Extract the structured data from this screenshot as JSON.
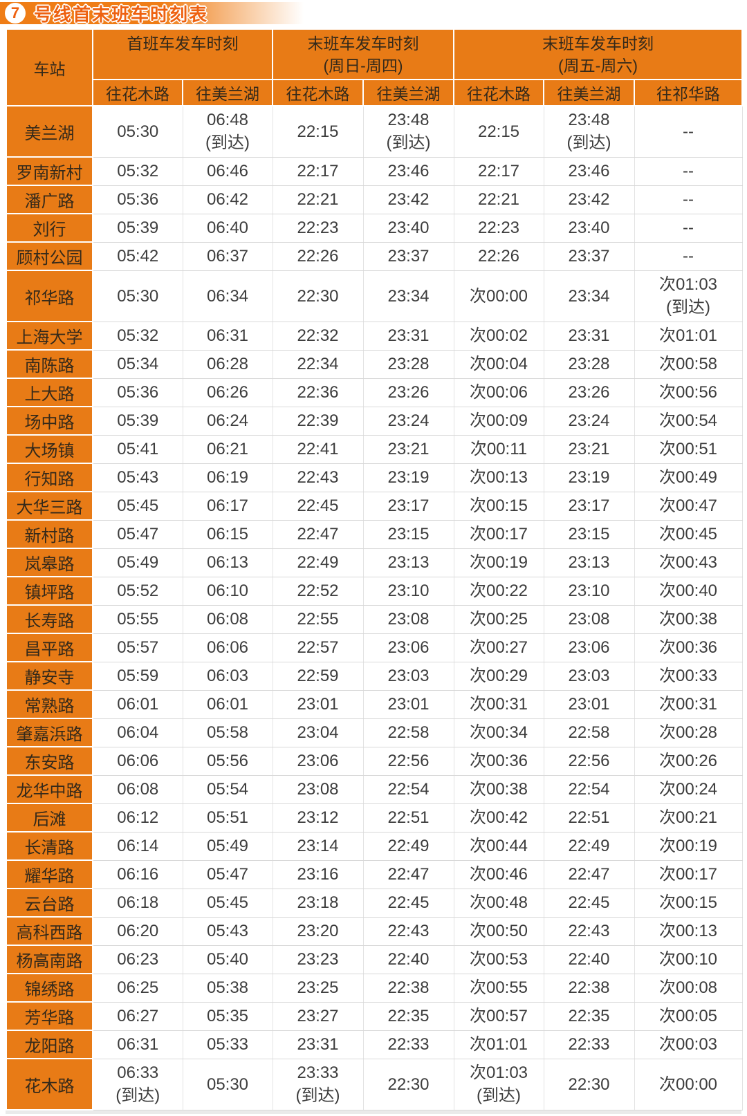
{
  "header": {
    "line_badge": "7",
    "title": "号线首末班车时刻表"
  },
  "colors": {
    "orange": "#e87b16",
    "bar_orange": "#ef7d16",
    "title_orange": "#ee6110",
    "header_text": "#34291a",
    "cell_text": "#3d3d3d"
  },
  "table": {
    "station_header": "车站",
    "groups": [
      {
        "label": "首班车发车时刻",
        "sub": ""
      },
      {
        "label": "末班车发车时刻",
        "sub": "(周日-周四)"
      },
      {
        "label": "末班车发车时刻",
        "sub": "(周五-周六)"
      }
    ],
    "direction_headers": [
      "往花木路",
      "往美兰湖",
      "往花木路",
      "往美兰湖",
      "往花木路",
      "往美兰湖",
      "往祁华路"
    ],
    "rows": [
      {
        "station": "美兰湖",
        "tall": true,
        "cells": [
          "05:30",
          "06:48\n(到达)",
          "22:15",
          "23:48\n(到达)",
          "22:15",
          "23:48\n(到达)",
          "--"
        ]
      },
      {
        "station": "罗南新村",
        "tall": false,
        "cells": [
          "05:32",
          "06:46",
          "22:17",
          "23:46",
          "22:17",
          "23:46",
          "--"
        ]
      },
      {
        "station": "潘广路",
        "tall": false,
        "cells": [
          "05:36",
          "06:42",
          "22:21",
          "23:42",
          "22:21",
          "23:42",
          "--"
        ]
      },
      {
        "station": "刘行",
        "tall": false,
        "cells": [
          "05:39",
          "06:40",
          "22:23",
          "23:40",
          "22:23",
          "23:40",
          "--"
        ]
      },
      {
        "station": "顾村公园",
        "tall": false,
        "cells": [
          "05:42",
          "06:37",
          "22:26",
          "23:37",
          "22:26",
          "23:37",
          "--"
        ]
      },
      {
        "station": "祁华路",
        "tall": true,
        "cells": [
          "05:30",
          "06:34",
          "22:30",
          "23:34",
          "次00:00",
          "23:34",
          "次01:03\n(到达)"
        ]
      },
      {
        "station": "上海大学",
        "tall": false,
        "cells": [
          "05:32",
          "06:31",
          "22:32",
          "23:31",
          "次00:02",
          "23:31",
          "次01:01"
        ]
      },
      {
        "station": "南陈路",
        "tall": false,
        "cells": [
          "05:34",
          "06:28",
          "22:34",
          "23:28",
          "次00:04",
          "23:28",
          "次00:58"
        ]
      },
      {
        "station": "上大路",
        "tall": false,
        "cells": [
          "05:36",
          "06:26",
          "22:36",
          "23:26",
          "次00:06",
          "23:26",
          "次00:56"
        ]
      },
      {
        "station": "场中路",
        "tall": false,
        "cells": [
          "05:39",
          "06:24",
          "22:39",
          "23:24",
          "次00:09",
          "23:24",
          "次00:54"
        ]
      },
      {
        "station": "大场镇",
        "tall": false,
        "cells": [
          "05:41",
          "06:21",
          "22:41",
          "23:21",
          "次00:11",
          "23:21",
          "次00:51"
        ]
      },
      {
        "station": "行知路",
        "tall": false,
        "cells": [
          "05:43",
          "06:19",
          "22:43",
          "23:19",
          "次00:13",
          "23:19",
          "次00:49"
        ]
      },
      {
        "station": "大华三路",
        "tall": false,
        "cells": [
          "05:45",
          "06:17",
          "22:45",
          "23:17",
          "次00:15",
          "23:17",
          "次00:47"
        ]
      },
      {
        "station": "新村路",
        "tall": false,
        "cells": [
          "05:47",
          "06:15",
          "22:47",
          "23:15",
          "次00:17",
          "23:15",
          "次00:45"
        ]
      },
      {
        "station": "岚皋路",
        "tall": false,
        "cells": [
          "05:49",
          "06:13",
          "22:49",
          "23:13",
          "次00:19",
          "23:13",
          "次00:43"
        ]
      },
      {
        "station": "镇坪路",
        "tall": false,
        "cells": [
          "05:52",
          "06:10",
          "22:52",
          "23:10",
          "次00:22",
          "23:10",
          "次00:40"
        ]
      },
      {
        "station": "长寿路",
        "tall": false,
        "cells": [
          "05:55",
          "06:08",
          "22:55",
          "23:08",
          "次00:25",
          "23:08",
          "次00:38"
        ]
      },
      {
        "station": "昌平路",
        "tall": false,
        "cells": [
          "05:57",
          "06:06",
          "22:57",
          "23:06",
          "次00:27",
          "23:06",
          "次00:36"
        ]
      },
      {
        "station": "静安寺",
        "tall": false,
        "cells": [
          "05:59",
          "06:03",
          "22:59",
          "23:03",
          "次00:29",
          "23:03",
          "次00:33"
        ]
      },
      {
        "station": "常熟路",
        "tall": false,
        "cells": [
          "06:01",
          "06:01",
          "23:01",
          "23:01",
          "次00:31",
          "23:01",
          "次00:31"
        ]
      },
      {
        "station": "肇嘉浜路",
        "tall": false,
        "cells": [
          "06:04",
          "05:58",
          "23:04",
          "22:58",
          "次00:34",
          "22:58",
          "次00:28"
        ]
      },
      {
        "station": "东安路",
        "tall": false,
        "cells": [
          "06:06",
          "05:56",
          "23:06",
          "22:56",
          "次00:36",
          "22:56",
          "次00:26"
        ]
      },
      {
        "station": "龙华中路",
        "tall": false,
        "cells": [
          "06:08",
          "05:54",
          "23:08",
          "22:54",
          "次00:38",
          "22:54",
          "次00:24"
        ]
      },
      {
        "station": "后滩",
        "tall": false,
        "cells": [
          "06:12",
          "05:51",
          "23:12",
          "22:51",
          "次00:42",
          "22:51",
          "次00:21"
        ]
      },
      {
        "station": "长清路",
        "tall": false,
        "cells": [
          "06:14",
          "05:49",
          "23:14",
          "22:49",
          "次00:44",
          "22:49",
          "次00:19"
        ]
      },
      {
        "station": "耀华路",
        "tall": false,
        "cells": [
          "06:16",
          "05:47",
          "23:16",
          "22:47",
          "次00:46",
          "22:47",
          "次00:17"
        ]
      },
      {
        "station": "云台路",
        "tall": false,
        "cells": [
          "06:18",
          "05:45",
          "23:18",
          "22:45",
          "次00:48",
          "22:45",
          "次00:15"
        ]
      },
      {
        "station": "高科西路",
        "tall": false,
        "cells": [
          "06:20",
          "05:43",
          "23:20",
          "22:43",
          "次00:50",
          "22:43",
          "次00:13"
        ]
      },
      {
        "station": "杨高南路",
        "tall": false,
        "cells": [
          "06:23",
          "05:40",
          "23:23",
          "22:40",
          "次00:53",
          "22:40",
          "次00:10"
        ]
      },
      {
        "station": "锦绣路",
        "tall": false,
        "cells": [
          "06:25",
          "05:38",
          "23:25",
          "22:38",
          "次00:55",
          "22:38",
          "次00:08"
        ]
      },
      {
        "station": "芳华路",
        "tall": false,
        "cells": [
          "06:27",
          "05:35",
          "23:27",
          "22:35",
          "次00:57",
          "22:35",
          "次00:05"
        ]
      },
      {
        "station": "龙阳路",
        "tall": false,
        "cells": [
          "06:31",
          "05:33",
          "23:31",
          "22:33",
          "次01:01",
          "22:33",
          "次00:03"
        ]
      },
      {
        "station": "花木路",
        "tall": true,
        "cells": [
          "06:33\n(到达)",
          "05:30",
          "23:33\n(到达)",
          "22:30",
          "次01:03\n(到达)",
          "22:30",
          "次00:00"
        ]
      }
    ]
  }
}
